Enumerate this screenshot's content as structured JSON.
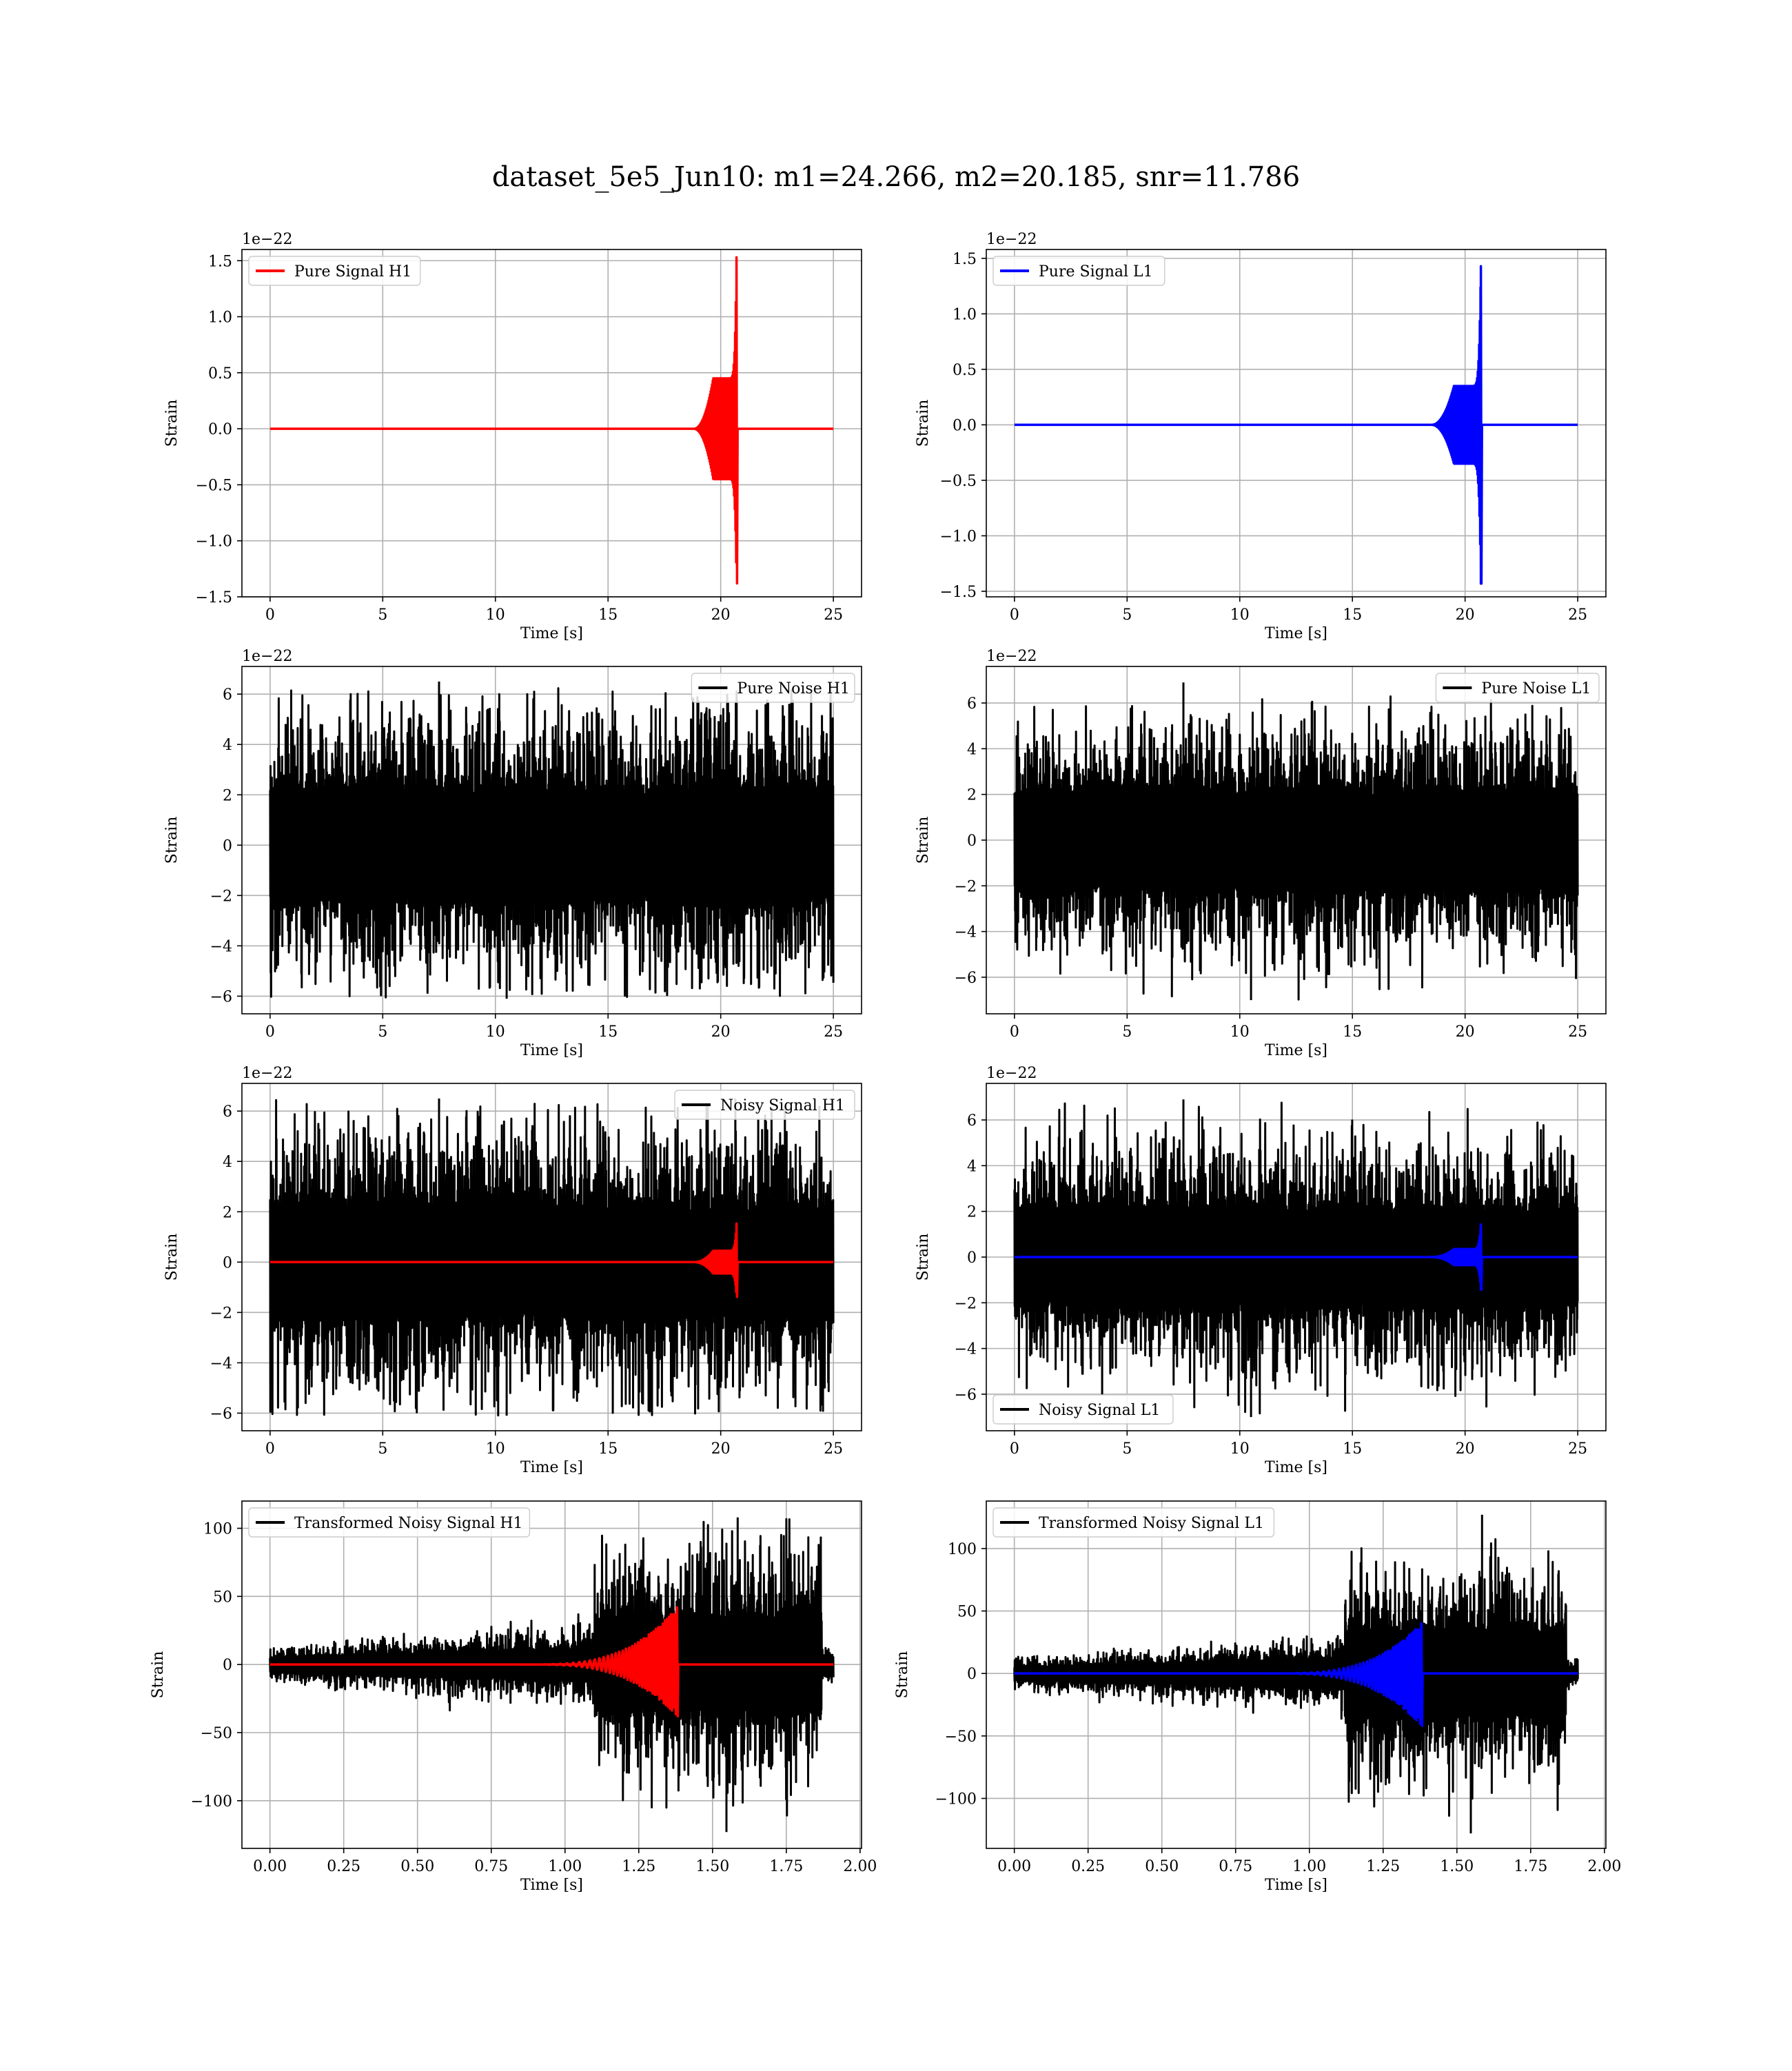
{
  "figure": {
    "suptitle": "dataset_5e5_Jun10: m1=24.266, m2=20.185, snr=11.786"
  },
  "chart_data": [
    {
      "type": "line",
      "panel": "pure-signal-h1",
      "grid": true,
      "xlabel": "Time [s]",
      "ylabel": "Strain",
      "offset_text": "1e−22",
      "xlim": [
        -1.25,
        26.25
      ],
      "ylim": [
        -1.5,
        1.6
      ],
      "xticks": [
        0,
        5,
        10,
        15,
        20,
        25
      ],
      "xtick_labels": [
        "0",
        "5",
        "10",
        "15",
        "20",
        "25"
      ],
      "yticks": [
        -1.5,
        -1.0,
        -0.5,
        0.0,
        0.5,
        1.0,
        1.5
      ],
      "ytick_labels": [
        "−1.5",
        "−1.0",
        "−0.5",
        "0.0",
        "0.5",
        "1.0",
        "1.5"
      ],
      "legend": "upper left",
      "series": [
        {
          "name": "Pure Signal H1",
          "color": "#ff0000",
          "kind": "chirp",
          "t_start": 0,
          "t_end": 25,
          "t_merger": 20.7,
          "t_rise": 18.8,
          "plateau_amp": 0.45,
          "peak_pos": 1.53,
          "peak_neg": -1.38
        }
      ]
    },
    {
      "type": "line",
      "panel": "pure-signal-l1",
      "grid": true,
      "xlabel": "Time [s]",
      "ylabel": "Strain",
      "offset_text": "1e−22",
      "xlim": [
        -1.25,
        26.25
      ],
      "ylim": [
        -1.55,
        1.58
      ],
      "xticks": [
        0,
        5,
        10,
        15,
        20,
        25
      ],
      "xtick_labels": [
        "0",
        "5",
        "10",
        "15",
        "20",
        "25"
      ],
      "yticks": [
        -1.5,
        -1.0,
        -0.5,
        0.0,
        0.5,
        1.0,
        1.5
      ],
      "ytick_labels": [
        "−1.5",
        "−1.0",
        "−0.5",
        "0.0",
        "0.5",
        "1.0",
        "1.5"
      ],
      "legend": "upper left",
      "series": [
        {
          "name": "Pure Signal L1",
          "color": "#0000ff",
          "kind": "chirp",
          "t_start": 0,
          "t_end": 25,
          "t_merger": 20.7,
          "t_rise": 18.5,
          "plateau_amp": 0.35,
          "peak_pos": 1.43,
          "peak_neg": -1.43
        }
      ]
    },
    {
      "type": "line",
      "panel": "pure-noise-h1",
      "grid": true,
      "xlabel": "Time [s]",
      "ylabel": "Strain",
      "offset_text": "1e−22",
      "xlim": [
        -1.25,
        26.25
      ],
      "ylim": [
        -6.7,
        7.1
      ],
      "xticks": [
        0,
        5,
        10,
        15,
        20,
        25
      ],
      "xtick_labels": [
        "0",
        "5",
        "10",
        "15",
        "20",
        "25"
      ],
      "yticks": [
        -6,
        -4,
        -2,
        0,
        2,
        4,
        6
      ],
      "ytick_labels": [
        "−6",
        "−4",
        "−2",
        "0",
        "2",
        "4",
        "6"
      ],
      "legend": "upper right",
      "series": [
        {
          "name": "Pure Noise H1",
          "color": "#000000",
          "kind": "noise",
          "t_start": 0,
          "t_end": 25,
          "amp": 3.5,
          "max": 6.5,
          "min": -6.1
        }
      ]
    },
    {
      "type": "line",
      "panel": "pure-noise-l1",
      "grid": true,
      "xlabel": "Time [s]",
      "ylabel": "Strain",
      "offset_text": "1e−22",
      "xlim": [
        -1.25,
        26.25
      ],
      "ylim": [
        -7.6,
        7.6
      ],
      "xticks": [
        0,
        5,
        10,
        15,
        20,
        25
      ],
      "xtick_labels": [
        "0",
        "5",
        "10",
        "15",
        "20",
        "25"
      ],
      "yticks": [
        -6,
        -4,
        -2,
        0,
        2,
        4,
        6
      ],
      "ytick_labels": [
        "−6",
        "−4",
        "−2",
        "0",
        "2",
        "4",
        "6"
      ],
      "legend": "upper right",
      "series": [
        {
          "name": "Pure Noise L1",
          "color": "#000000",
          "kind": "noise",
          "t_start": 0,
          "t_end": 25,
          "amp": 3.4,
          "max": 6.9,
          "min": -7.0
        }
      ]
    },
    {
      "type": "line",
      "panel": "noisy-signal-h1",
      "grid": true,
      "xlabel": "Time [s]",
      "ylabel": "Strain",
      "offset_text": "1e−22",
      "xlim": [
        -1.25,
        26.25
      ],
      "ylim": [
        -6.7,
        7.1
      ],
      "xticks": [
        0,
        5,
        10,
        15,
        20,
        25
      ],
      "xtick_labels": [
        "0",
        "5",
        "10",
        "15",
        "20",
        "25"
      ],
      "yticks": [
        -6,
        -4,
        -2,
        0,
        2,
        4,
        6
      ],
      "ytick_labels": [
        "−6",
        "−4",
        "−2",
        "0",
        "2",
        "4",
        "6"
      ],
      "legend": "upper right",
      "series": [
        {
          "name": "Noisy Signal H1",
          "color": "#000000",
          "kind": "noise",
          "t_start": 0,
          "t_end": 25,
          "amp": 3.5,
          "max": 6.5,
          "min": -6.1
        },
        {
          "color": "#ff0000",
          "kind": "chirp",
          "t_start": 0,
          "t_end": 25,
          "t_merger": 20.7,
          "t_rise": 18.8,
          "plateau_amp": 0.45,
          "peak_pos": 1.53,
          "peak_neg": -1.38
        }
      ]
    },
    {
      "type": "line",
      "panel": "noisy-signal-l1",
      "grid": true,
      "xlabel": "Time [s]",
      "ylabel": "Strain",
      "offset_text": "1e−22",
      "xlim": [
        -1.25,
        26.25
      ],
      "ylim": [
        -7.6,
        7.6
      ],
      "xticks": [
        0,
        5,
        10,
        15,
        20,
        25
      ],
      "xtick_labels": [
        "0",
        "5",
        "10",
        "15",
        "20",
        "25"
      ],
      "yticks": [
        -6,
        -4,
        -2,
        0,
        2,
        4,
        6
      ],
      "ytick_labels": [
        "−6",
        "−4",
        "−2",
        "0",
        "2",
        "4",
        "6"
      ],
      "legend": "lower left",
      "series": [
        {
          "name": "Noisy Signal L1",
          "color": "#000000",
          "kind": "noise",
          "t_start": 0,
          "t_end": 25,
          "amp": 3.4,
          "max": 6.9,
          "min": -7.0
        },
        {
          "color": "#0000ff",
          "kind": "chirp",
          "t_start": 0,
          "t_end": 25,
          "t_merger": 20.7,
          "t_rise": 18.5,
          "plateau_amp": 0.35,
          "peak_pos": 1.43,
          "peak_neg": -1.43
        }
      ]
    },
    {
      "type": "line",
      "panel": "transformed-noisy-signal-h1",
      "grid": true,
      "xlabel": "Time [s]",
      "ylabel": "Strain",
      "offset_text": "",
      "xlim": [
        -0.095,
        2.005
      ],
      "ylim": [
        -135,
        120
      ],
      "xticks": [
        0.0,
        0.25,
        0.5,
        0.75,
        1.0,
        1.25,
        1.5,
        1.75,
        2.0
      ],
      "xtick_labels": [
        "0.00",
        "0.25",
        "0.50",
        "0.75",
        "1.00",
        "1.25",
        "1.50",
        "1.75",
        "2.00"
      ],
      "yticks": [
        -100,
        -50,
        0,
        50,
        100
      ],
      "ytick_labels": [
        "−100",
        "−50",
        "0",
        "50",
        "100"
      ],
      "legend": "upper left",
      "series": [
        {
          "name": "Transformed Noisy Signal H1",
          "color": "#000000",
          "kind": "noise2",
          "t_start": 0,
          "t_end": 1.91,
          "amp_low": 8,
          "t_jump": 1.1,
          "amp_high": 55,
          "max": 108,
          "min": -123,
          "t_end_burst": 1.87
        },
        {
          "color": "#ff0000",
          "kind": "chirp2",
          "t_start": 0,
          "t_end": 1.91,
          "t_rise": 0.85,
          "t_merger": 1.38,
          "peak_pos": 42,
          "peak_neg": -38
        }
      ]
    },
    {
      "type": "line",
      "panel": "transformed-noisy-signal-l1",
      "grid": true,
      "xlabel": "Time [s]",
      "ylabel": "Strain",
      "offset_text": "",
      "xlim": [
        -0.095,
        2.005
      ],
      "ylim": [
        -140,
        138
      ],
      "xticks": [
        0.0,
        0.25,
        0.5,
        0.75,
        1.0,
        1.25,
        1.5,
        1.75,
        2.0
      ],
      "xtick_labels": [
        "0.00",
        "0.25",
        "0.50",
        "0.75",
        "1.00",
        "1.25",
        "1.50",
        "1.75",
        "2.00"
      ],
      "yticks": [
        -100,
        -50,
        0,
        50,
        100
      ],
      "ytick_labels": [
        "−100",
        "−50",
        "0",
        "50",
        "100"
      ],
      "legend": "upper left",
      "series": [
        {
          "name": "Transformed Noisy Signal L1",
          "color": "#000000",
          "kind": "noise2",
          "t_start": 0,
          "t_end": 1.91,
          "amp_low": 8,
          "t_jump": 1.12,
          "amp_high": 55,
          "max": 127,
          "min": -128,
          "t_end_burst": 1.87
        },
        {
          "color": "#0000ff",
          "kind": "chirp2",
          "t_start": 0,
          "t_end": 1.91,
          "t_rise": 0.85,
          "t_merger": 1.38,
          "peak_pos": 40,
          "peak_neg": -42
        }
      ]
    }
  ]
}
